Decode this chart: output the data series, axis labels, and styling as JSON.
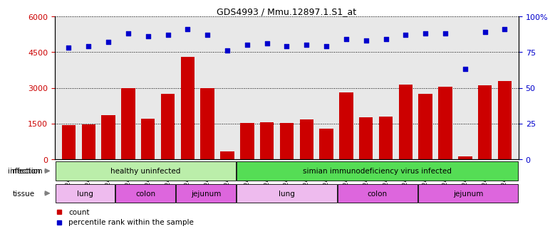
{
  "title": "GDS4993 / Mmu.12897.1.S1_at",
  "samples": [
    "GSM1249391",
    "GSM1249392",
    "GSM1249393",
    "GSM1249369",
    "GSM1249370",
    "GSM1249371",
    "GSM1249380",
    "GSM1249381",
    "GSM1249382",
    "GSM1249386",
    "GSM1249387",
    "GSM1249388",
    "GSM1249389",
    "GSM1249390",
    "GSM1249365",
    "GSM1249366",
    "GSM1249367",
    "GSM1249368",
    "GSM1249375",
    "GSM1249376",
    "GSM1249377",
    "GSM1249378",
    "GSM1249379"
  ],
  "counts": [
    1430,
    1460,
    1850,
    3000,
    1700,
    2750,
    4300,
    3000,
    330,
    1520,
    1560,
    1520,
    1680,
    1290,
    2800,
    1750,
    1800,
    3150,
    2750,
    3050,
    110,
    3120,
    3300
  ],
  "percentiles": [
    78,
    79,
    82,
    88,
    86,
    87,
    91,
    87,
    76,
    80,
    81,
    79,
    80,
    79,
    84,
    83,
    84,
    87,
    88,
    88,
    63,
    89,
    91
  ],
  "bar_color": "#cc0000",
  "dot_color": "#0000cc",
  "ylim_left": [
    0,
    6000
  ],
  "ylim_right": [
    0,
    100
  ],
  "yticks_left": [
    0,
    1500,
    3000,
    4500,
    6000
  ],
  "yticks_right": [
    0,
    25,
    50,
    75,
    100
  ],
  "background_color": "#e8e8e8",
  "infection_groups": [
    {
      "label": "healthy uninfected",
      "start": 0,
      "end": 9,
      "color": "#bbeeaa"
    },
    {
      "label": "simian immunodeficiency virus infected",
      "start": 9,
      "end": 23,
      "color": "#55dd55"
    }
  ],
  "tissue_groups": [
    {
      "label": "lung",
      "start": 0,
      "end": 3,
      "color": "#eebbee"
    },
    {
      "label": "colon",
      "start": 3,
      "end": 6,
      "color": "#dd66dd"
    },
    {
      "label": "jejunum",
      "start": 6,
      "end": 9,
      "color": "#dd66dd"
    },
    {
      "label": "lung",
      "start": 9,
      "end": 14,
      "color": "#eebbee"
    },
    {
      "label": "colon",
      "start": 14,
      "end": 18,
      "color": "#dd66dd"
    },
    {
      "label": "jejunum",
      "start": 18,
      "end": 23,
      "color": "#dd66dd"
    }
  ],
  "infection_row_label": "infection",
  "tissue_row_label": "tissue"
}
